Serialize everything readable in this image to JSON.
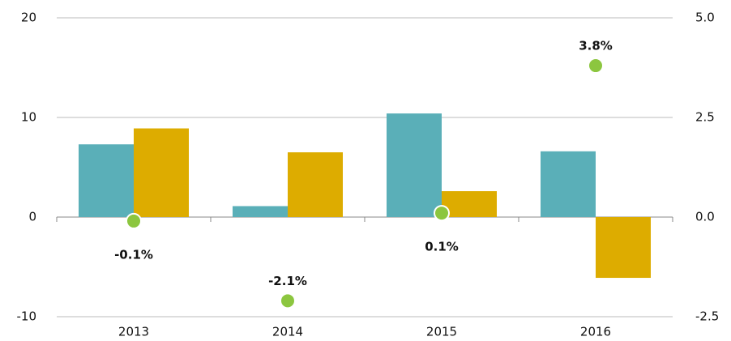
{
  "chart_data": {
    "type": "bar",
    "categories": [
      "2013",
      "2014",
      "2015",
      "2016"
    ],
    "series": [
      {
        "color": "#5aafb8",
        "values": [
          7.3,
          1.1,
          10.4,
          6.6
        ]
      },
      {
        "color": "#ddac00",
        "values": [
          8.9,
          6.5,
          2.6,
          -6.1
        ]
      },
      {
        "color": "#8cc63f",
        "axis": "y2",
        "values": [
          -0.1,
          -2.1,
          0.1,
          3.8
        ],
        "value_labels": [
          "-0.1%",
          "-2.1%",
          "0.1%",
          "3.8%"
        ]
      }
    ],
    "ylim": [
      -10,
      20
    ],
    "yticks": [
      -10,
      0,
      10,
      20
    ],
    "y2lim": [
      -2.5,
      5
    ],
    "y2ticks": [
      {
        "value": -2.5,
        "label": "-2.5"
      },
      {
        "value": 0,
        "label": "0.0"
      },
      2.5,
      {
        "value": 5,
        "label": "5.0"
      }
    ],
    "grid": true
  }
}
